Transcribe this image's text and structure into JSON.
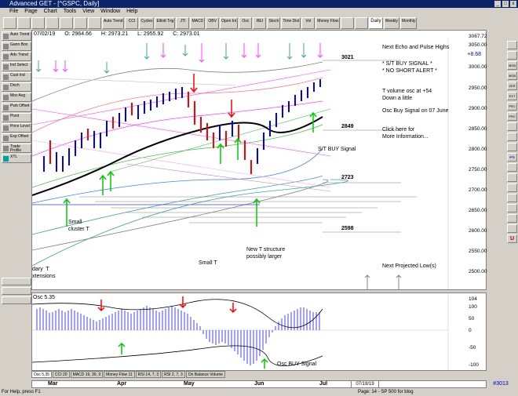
{
  "window": {
    "title": "Advanced GET - [^GSPC, Daily]"
  },
  "menu": [
    "File",
    "Page",
    "Chart",
    "Tools",
    "View",
    "Window",
    "Help"
  ],
  "toolbar": {
    "buttons": [
      "Auto Trend",
      "CCI",
      "Cycles",
      "Elliott Trig",
      "JTI",
      "MACD",
      "OBV",
      "Open Int",
      "Osc",
      "REI",
      "Stoch",
      "Time Dist",
      "Vol",
      "Money Flow"
    ],
    "periods": [
      "Daily",
      "Weekly",
      "Monthly"
    ]
  },
  "left_toolbar": [
    "Auto Trend",
    "Gann Box",
    "Adv Trend",
    "Ind Select",
    "Cust Ind",
    "Dnch",
    "Mov Avg",
    "Pwb Offset",
    "Pivot",
    "Price Level",
    "Exp Offset",
    "Trade Profile",
    "XTL"
  ],
  "right_toolbar": [
    "",
    "",
    "MOB",
    "MOB",
    "ZER",
    "EXT",
    "PRC",
    "PRC",
    "",
    "",
    "",
    "PTI",
    "",
    "",
    "",
    "",
    "",
    "",
    "",
    "U"
  ],
  "price_info": {
    "date": "07/02/19",
    "open": "O: 2964.66",
    "high": "H: 2973.21",
    "low": "L: 2955.92",
    "close": "C: 2973.01",
    "change": "+8.68"
  },
  "price_axis": [
    "3067.72",
    "3050.00",
    "3000.00",
    "2950.00",
    "2900.00",
    "2850.00",
    "2800.00",
    "2750.00",
    "2700.00",
    "2650.00",
    "2600.00",
    "2550.00",
    "2500.00"
  ],
  "levels": [
    "3021",
    "2849",
    "2723",
    "2598"
  ],
  "notes": {
    "echo": "Next Echo and Pulse Highs",
    "signal": "* S/T BUY SIGNAL *\n* NO SHORT ALERT *",
    "tvol": "T volume osc at +54\nDown a little",
    "osc_buy": "Osc Buy Signal on 07 June",
    "more": "Click here for\nMore Information...",
    "st_buy": "S/T BUY Signal",
    "small_cluster": "Small\ncluster T",
    "small_t": "Small T",
    "new_t": "New T structure\npossibly larger",
    "boundary": "dary  T\nxtensions",
    "projected_low": "Next Projected Low(s)"
  },
  "osc": {
    "label": "Osc 5.35",
    "axis": [
      "104",
      "100",
      "50",
      "0",
      "-50",
      "-100"
    ],
    "buy_label": "Osc BUY Signal"
  },
  "tabs": [
    "Osc 5,35",
    "CCI 20",
    "MACD 19, 39, 9",
    "Money Flow 11",
    "RSI 14, 7, 3",
    "RSI 2, 7, 3",
    "On Balance Volume"
  ],
  "months": [
    "Mar",
    "Apr",
    "May",
    "Jun",
    "Jul"
  ],
  "date_box": "07/19/19",
  "symbol_box": "#3013",
  "status": {
    "help": "For Help, press F1",
    "page": "Page: 14 - SP 500 for blog"
  },
  "colors": {
    "up": "#0000ff",
    "down": "#ff0000",
    "buy_arrow": "#00cc00",
    "sell_arrow": "#ff0000",
    "cyan": "#40a0a0",
    "magenta": "#ff40ff"
  }
}
